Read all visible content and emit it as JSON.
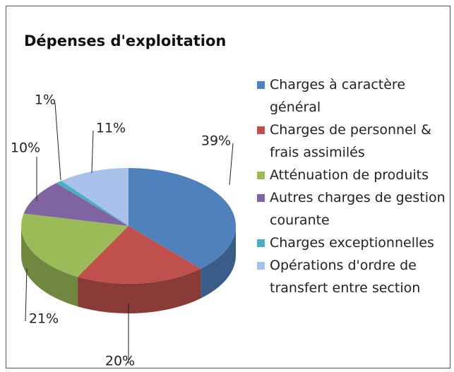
{
  "chart_data": {
    "type": "pie",
    "title": "Dépenses d'exploitation",
    "categories": [
      "Charges à caractère général",
      "Charges de personnel & frais assimilés",
      "Atténuation de produits",
      "Autres charges de gestion courante",
      "Charges exceptionnelles",
      "Opérations d'ordre de transfert entre section"
    ],
    "values": [
      39,
      20,
      21,
      10,
      1,
      11
    ],
    "value_labels": [
      "39%",
      "20%",
      "21%",
      "10%",
      "1%",
      "11%"
    ],
    "colors": [
      "#4f81bd",
      "#c0504d",
      "#9bbb59",
      "#8064a2",
      "#4bacc6",
      "#a7c1ea"
    ],
    "legend": "right"
  }
}
